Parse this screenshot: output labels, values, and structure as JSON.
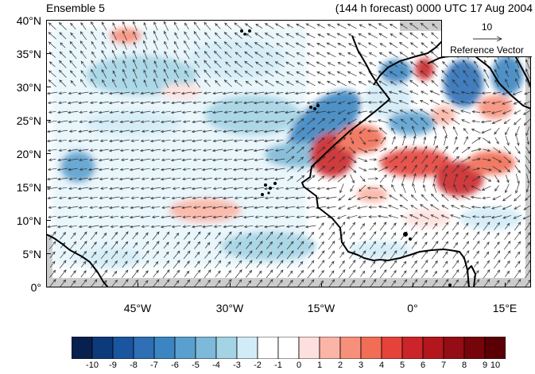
{
  "title_left": "Ensemble 5",
  "title_right": "(144 h forecast) 0000 UTC 17 Aug 2004",
  "lat_labels": [
    "40°N",
    "35°N",
    "30°N",
    "25°N",
    "20°N",
    "15°N",
    "10°N",
    "5°N",
    "0°"
  ],
  "lon_labels": [
    "45°W",
    "30°W",
    "15°W",
    "0°",
    "15°E"
  ],
  "colorbar": {
    "labels": [
      "-10",
      "-9",
      "-8",
      "-7",
      "-6",
      "-5",
      "-4",
      "-3",
      "-2",
      "-1",
      "0",
      "1",
      "2",
      "3",
      "4",
      "5",
      "6",
      "7",
      "8",
      "9",
      "10"
    ],
    "colors": [
      "#07204d",
      "#0d3a7a",
      "#1a56a0",
      "#2e6fb6",
      "#3b86c2",
      "#5aa0cf",
      "#7db9d8",
      "#a3d3e4",
      "#d2ecf7",
      "#ffffff",
      "#ffffff",
      "#fde0dd",
      "#fbb4a5",
      "#f7907b",
      "#f16d55",
      "#e5433a",
      "#cb2529",
      "#b3161d",
      "#940d14",
      "#75050b",
      "#5a0005"
    ]
  },
  "reference_vector": {
    "magnitude": "10",
    "label": "Reference Vector"
  },
  "colors": {
    "land_mask": "#cccccc",
    "coast": "#000000",
    "arrow": "#333333"
  }
}
